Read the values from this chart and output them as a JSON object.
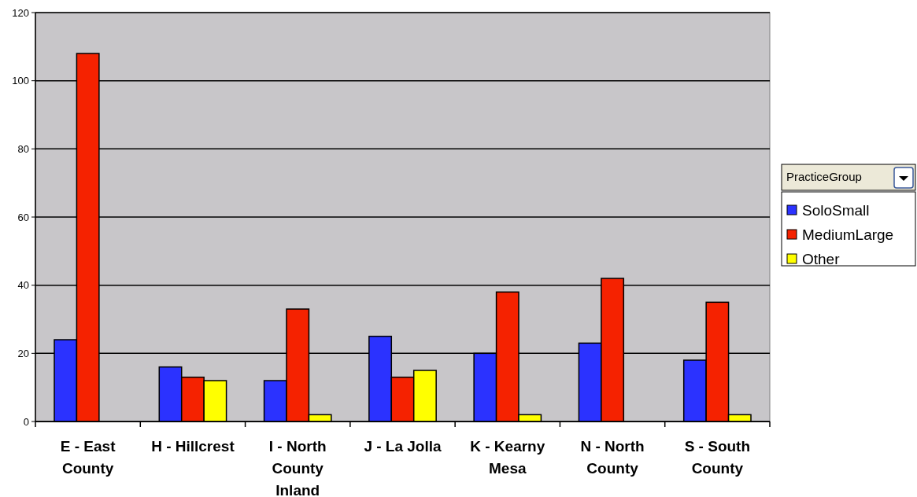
{
  "chart_data": {
    "type": "bar",
    "legend_title": "PracticeGroup",
    "categories": [
      "E - East County",
      "H - Hillcrest",
      "I - North County Inland",
      "J - La Jolla",
      "K - Kearny Mesa",
      "N - North County",
      "S - South County"
    ],
    "series": [
      {
        "name": "SoloSmall",
        "color": "#2b32ff",
        "values": [
          24,
          16,
          12,
          25,
          20,
          23,
          18
        ]
      },
      {
        "name": "MediumLarge",
        "color": "#f52200",
        "values": [
          108,
          13,
          33,
          13,
          38,
          42,
          35
        ]
      },
      {
        "name": "Other",
        "color": "#ffff00",
        "values": [
          null,
          12,
          2,
          15,
          2,
          null,
          2
        ]
      }
    ],
    "ylim": [
      0,
      120
    ],
    "yticks": [
      0,
      20,
      40,
      60,
      80,
      100,
      120
    ],
    "grid": "y",
    "legend": "right"
  }
}
